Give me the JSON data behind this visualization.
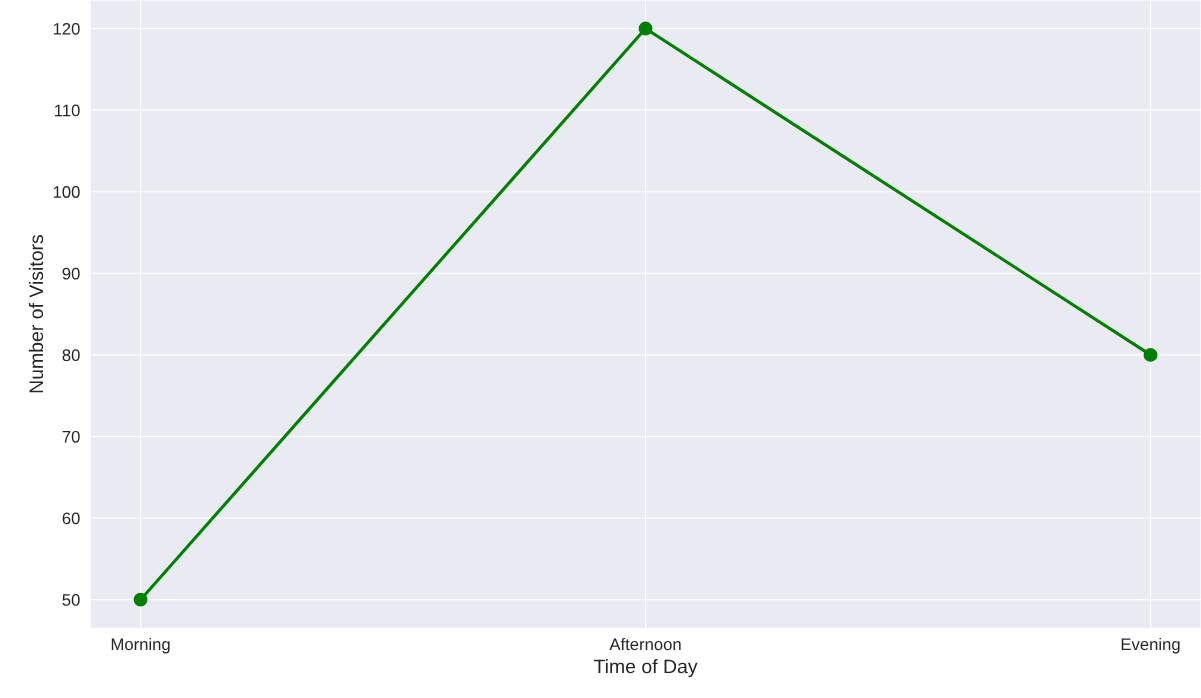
{
  "chart_data": {
    "type": "line",
    "xlabel": "Time of Day",
    "ylabel": "Number of Visitors",
    "categories": [
      "Morning",
      "Afternoon",
      "Evening"
    ],
    "series": [
      {
        "color": "#008000",
        "values": [
          50,
          120,
          80
        ]
      }
    ],
    "ylim": [
      46.5,
      123.5
    ],
    "yticks": [
      50,
      60,
      70,
      80,
      90,
      100,
      110,
      120
    ],
    "grid": true,
    "marker": "circle",
    "line_style": "solid"
  }
}
